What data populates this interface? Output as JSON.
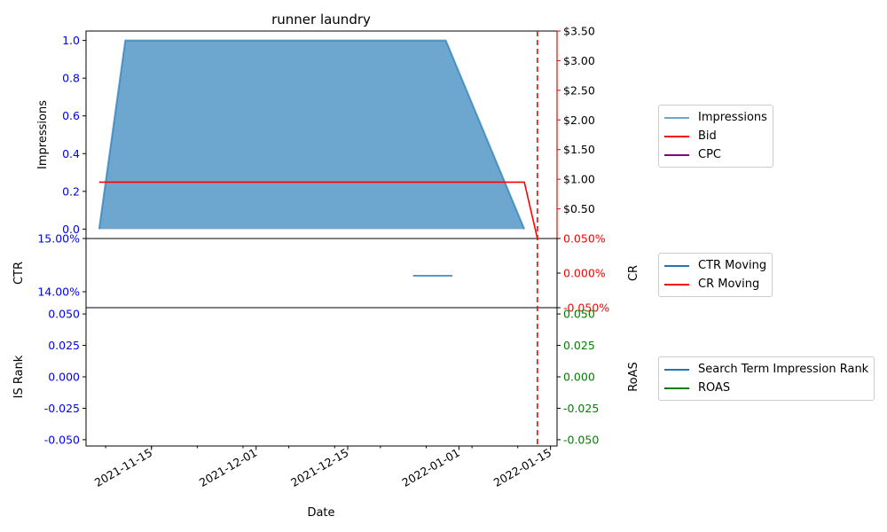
{
  "chart_data": {
    "type": "line",
    "title": "runner laundry",
    "xlabel": "Date",
    "x_ticks": [
      "2021-11-15",
      "2021-12-01",
      "2021-12-15",
      "2022-01-01",
      "2022-01-15"
    ],
    "x_range": [
      "2021-11-05",
      "2022-01-16"
    ],
    "event_marker": {
      "date": "2022-01-13",
      "color": "#ff0000",
      "style": "dashed"
    },
    "panels": [
      {
        "name": "impressions-panel",
        "ylabel_left": "Impressions",
        "ylabel_right": "",
        "left_ticks": [
          "0.0",
          "0.2",
          "0.4",
          "0.6",
          "0.8",
          "1.0"
        ],
        "left_ylim": [
          -0.05,
          1.05
        ],
        "right_ticks": [
          "$0.50",
          "$1.00",
          "$1.50",
          "$2.00",
          "$2.50",
          "$3.00",
          "$3.50"
        ],
        "right_ylim": [
          0,
          3.5
        ],
        "left_tick_color": "#0000ff",
        "right_tick_color": "#000000",
        "right_spine_color": "#ff0000",
        "series": [
          {
            "name": "Impressions",
            "axis": "left",
            "color": "#1f77b4",
            "fill": true,
            "x": [
              "2021-11-07",
              "2021-11-11",
              "2021-12-30",
              "2022-01-11"
            ],
            "values": [
              0,
              1,
              1,
              0
            ]
          },
          {
            "name": "Bid",
            "axis": "right",
            "color": "#ff0000",
            "x": [
              "2021-11-07",
              "2022-01-11",
              "2022-01-13"
            ],
            "values": [
              0.95,
              0.95,
              0.0
            ]
          },
          {
            "name": "CPC",
            "axis": "right",
            "color": "#800080",
            "x": [],
            "values": []
          }
        ],
        "legend": [
          "Impressions",
          "Bid",
          "CPC"
        ]
      },
      {
        "name": "ctr-panel",
        "ylabel_left": "CTR",
        "ylabel_right": "CR",
        "left_ticks": [
          "14.00%",
          "15.00%"
        ],
        "left_ylim": [
          13.7,
          15.0
        ],
        "right_ticks": [
          "-0.050%",
          "0.000%",
          "0.050%"
        ],
        "right_ylim": [
          -0.05,
          0.05
        ],
        "left_tick_color": "#0000ff",
        "right_tick_color": "#ff0000",
        "series": [
          {
            "name": "CTR Moving",
            "axis": "left",
            "color": "#1f77b4",
            "x": [
              "2021-12-25",
              "2021-12-31"
            ],
            "values": [
              14.3,
              14.3
            ]
          },
          {
            "name": "CR Moving",
            "axis": "right",
            "color": "#ff0000",
            "x": [],
            "values": []
          }
        ],
        "legend": [
          "CTR Moving",
          "CR Moving"
        ]
      },
      {
        "name": "is-rank-panel",
        "ylabel_left": "IS Rank",
        "ylabel_right": "RoAS",
        "left_ticks": [
          "-0.050",
          "-0.025",
          "0.000",
          "0.025",
          "0.050"
        ],
        "left_ylim": [
          -0.055,
          0.055
        ],
        "right_ticks": [
          "-0.050",
          "-0.025",
          "0.000",
          "0.025",
          "0.050"
        ],
        "right_ylim": [
          -0.055,
          0.055
        ],
        "left_tick_color": "#0000ff",
        "right_tick_color": "#008000",
        "series": [
          {
            "name": "Search Term Impression Rank",
            "axis": "left",
            "color": "#1f77b4",
            "x": [],
            "values": []
          },
          {
            "name": "ROAS",
            "axis": "right",
            "color": "#008000",
            "x": [],
            "values": []
          }
        ],
        "legend": [
          "Search Term Impression Rank",
          "ROAS"
        ]
      }
    ]
  }
}
